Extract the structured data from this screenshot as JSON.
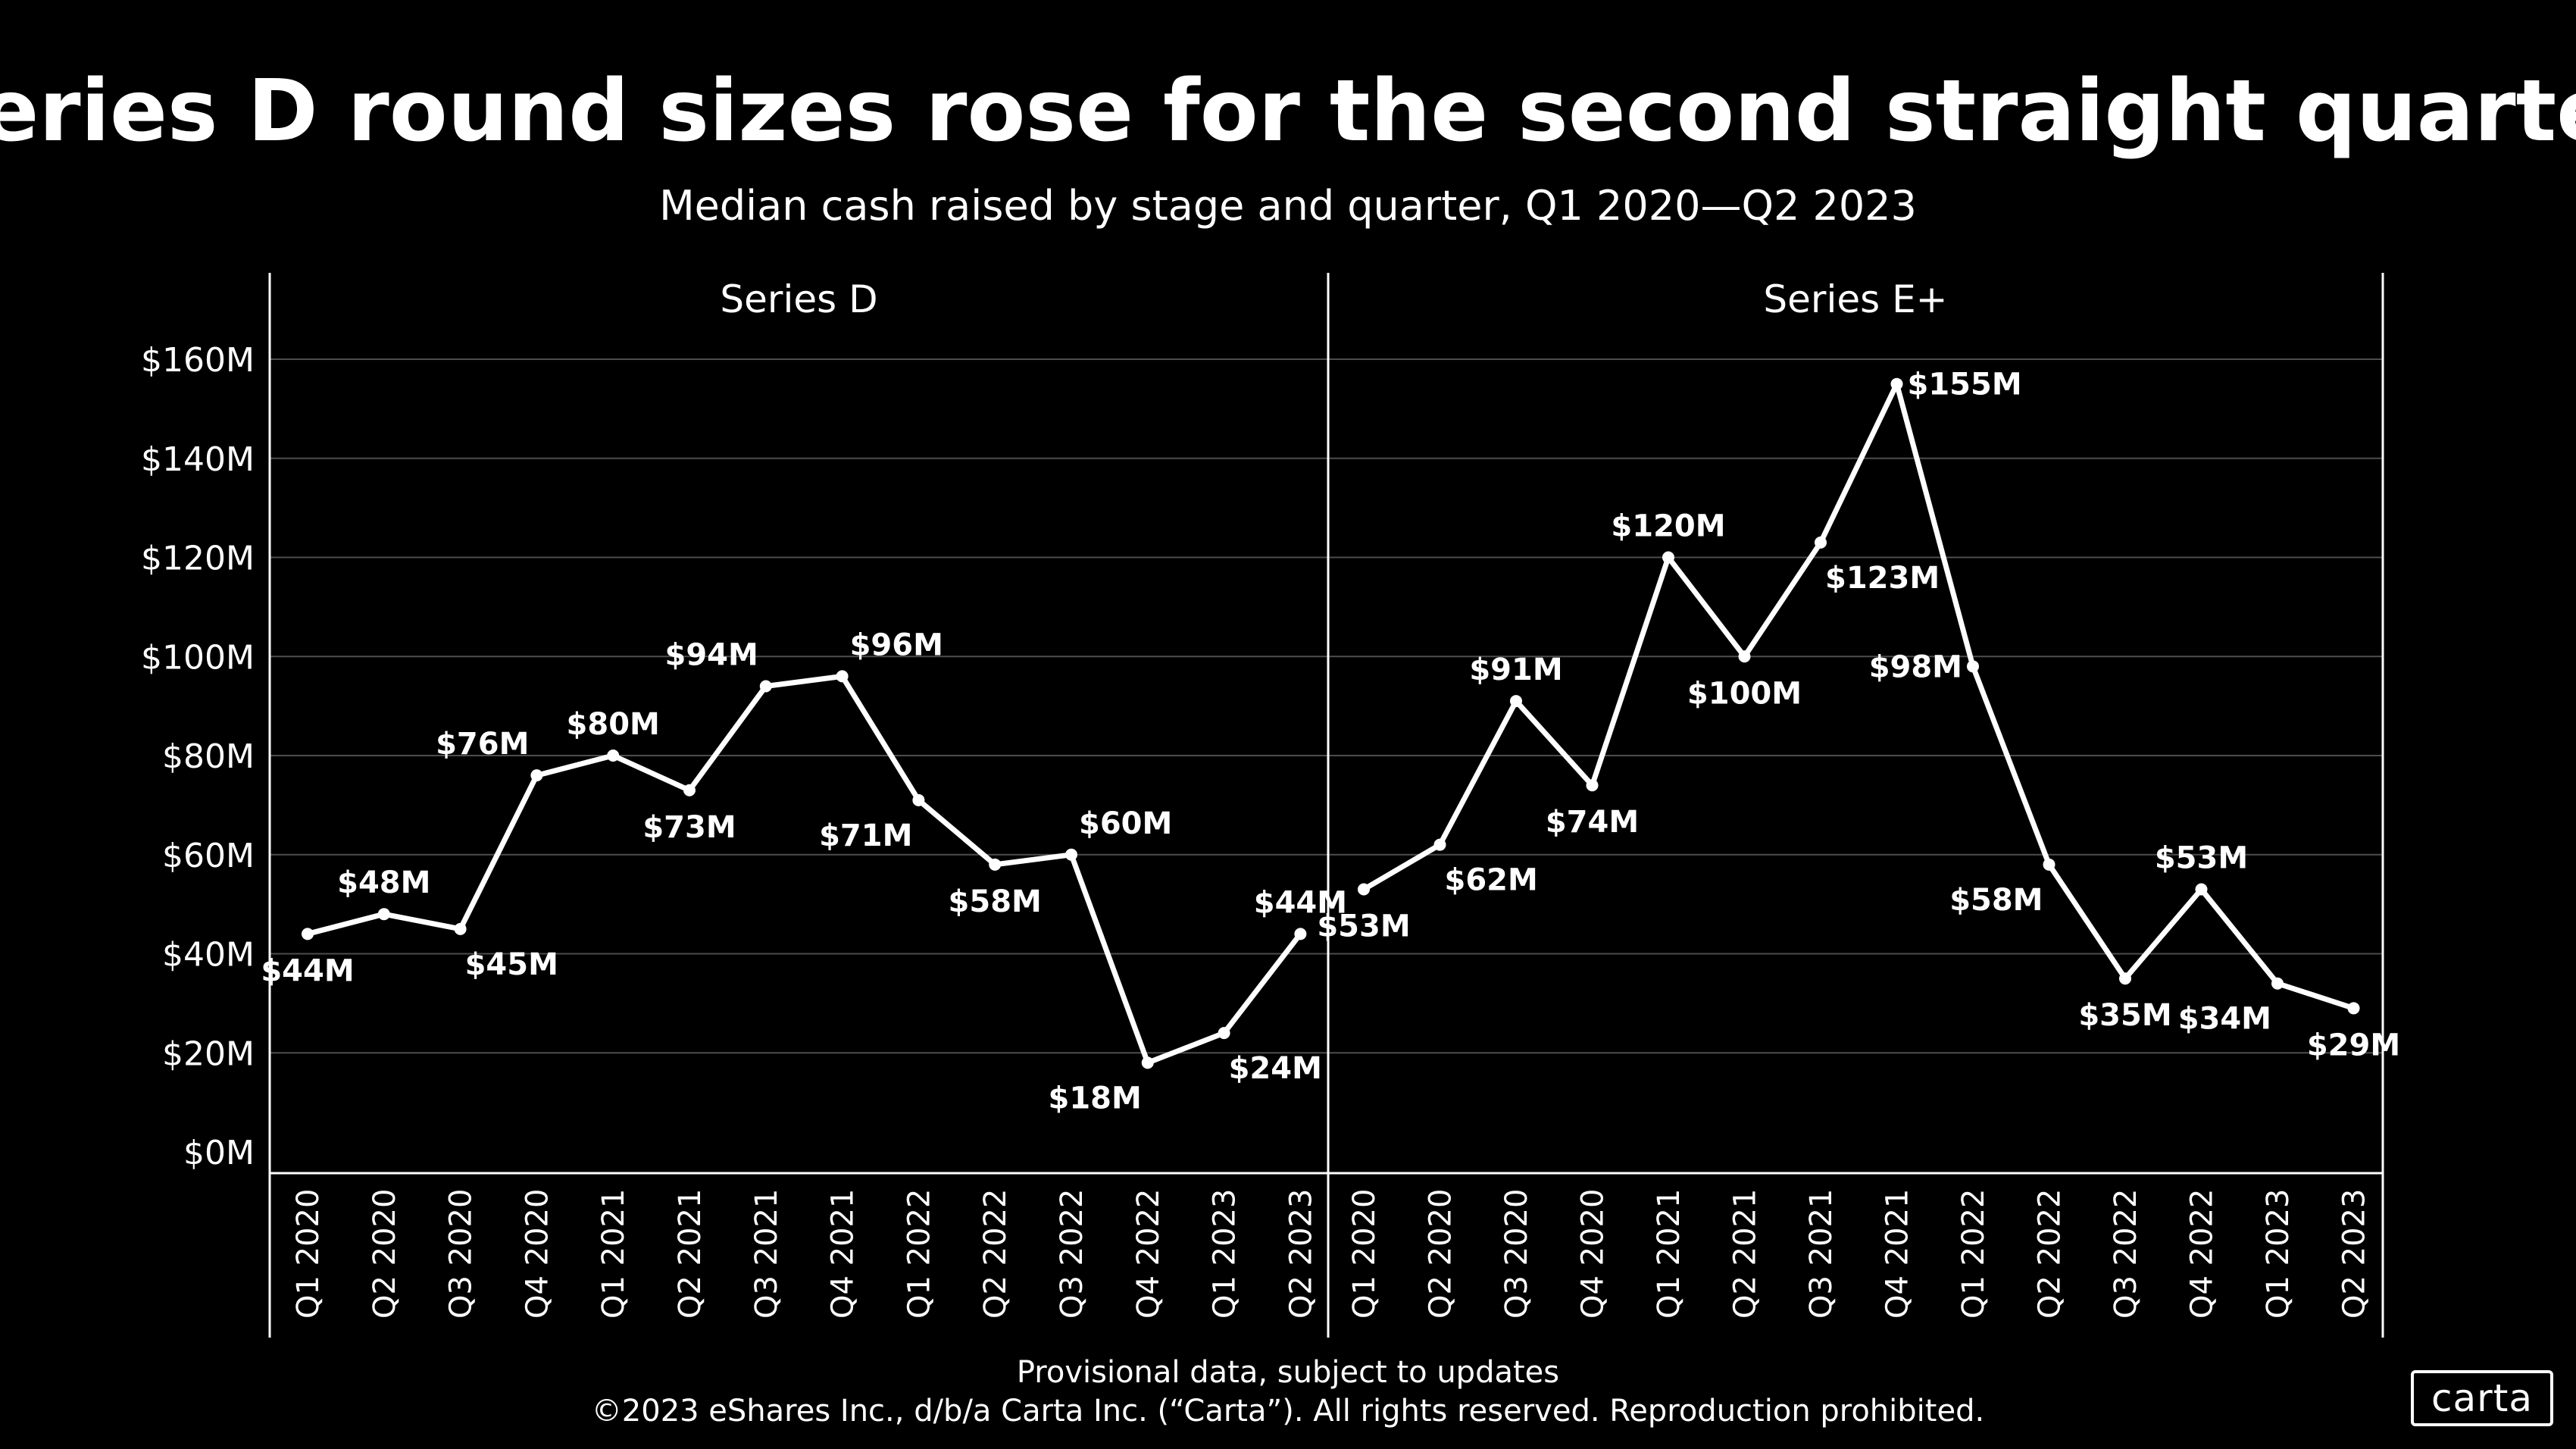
{
  "colors": {
    "background": "#000000",
    "foreground": "#ffffff",
    "grid": "#4d4d4d",
    "axis": "#ffffff"
  },
  "header": {
    "title": "Series D round sizes rose for the second straight quarter",
    "subtitle": "Median cash raised by stage and quarter, Q1 2020—Q2 2023"
  },
  "footer": {
    "note": "Provisional data, subject to updates",
    "copyright": "©2023 eShares Inc., d/b/a Carta Inc. (“Carta”). All rights reserved. Reproduction prohibited."
  },
  "logo": {
    "text": "carta"
  },
  "chart_data": {
    "type": "line",
    "title": "Series D round sizes rose for the second straight quarter",
    "subtitle": "Median cash raised by stage and quarter, Q1 2020—Q2 2023",
    "ylim": [
      0,
      160
    ],
    "yticks": [
      0,
      20,
      40,
      60,
      80,
      100,
      120,
      140,
      160
    ],
    "ytick_labels": [
      "$0M",
      "$20M",
      "$40M",
      "$60M",
      "$80M",
      "$100M",
      "$120M",
      "$140M",
      "$160M"
    ],
    "grid": true,
    "categories": [
      "Q1 2020",
      "Q2 2020",
      "Q3 2020",
      "Q4 2020",
      "Q1 2021",
      "Q2 2021",
      "Q3 2021",
      "Q4 2021",
      "Q1 2022",
      "Q2 2022",
      "Q3 2022",
      "Q4 2022",
      "Q1 2023",
      "Q2 2023"
    ],
    "panels": [
      {
        "name": "Series D",
        "values": [
          44,
          48,
          45,
          76,
          80,
          73,
          94,
          96,
          71,
          58,
          60,
          18,
          24,
          44
        ],
        "labels": [
          "$44M",
          "$48M",
          "$45M",
          "$76M",
          "$80M",
          "$73M",
          "$94M",
          "$96M",
          "$71M",
          "$58M",
          "$60M",
          "$18M",
          "$24M",
          "$44M"
        ],
        "label_positions": [
          "bottom",
          "top",
          "bottom-right",
          "top-left",
          "top",
          "bottom",
          "top-left",
          "top-right",
          "bottom-left",
          "bottom",
          "top-right",
          "bottom-left",
          "bottom-right",
          "top"
        ]
      },
      {
        "name": "Series E+",
        "values": [
          53,
          62,
          91,
          74,
          120,
          100,
          123,
          155,
          98,
          58,
          35,
          53,
          34,
          29
        ],
        "labels": [
          "$53M",
          "$62M",
          "$91M",
          "$74M",
          "$120M",
          "$100M",
          "$123M",
          "$155M",
          "$98M",
          "$58M",
          "$35M",
          "$53M",
          "$34M",
          "$29M"
        ],
        "label_positions": [
          "bottom",
          "bottom-right",
          "top",
          "bottom",
          "top",
          "bottom",
          "bottom-right",
          "right",
          "left",
          "bottom-left",
          "bottom",
          "top",
          "bottom-left",
          "bottom"
        ]
      }
    ]
  }
}
